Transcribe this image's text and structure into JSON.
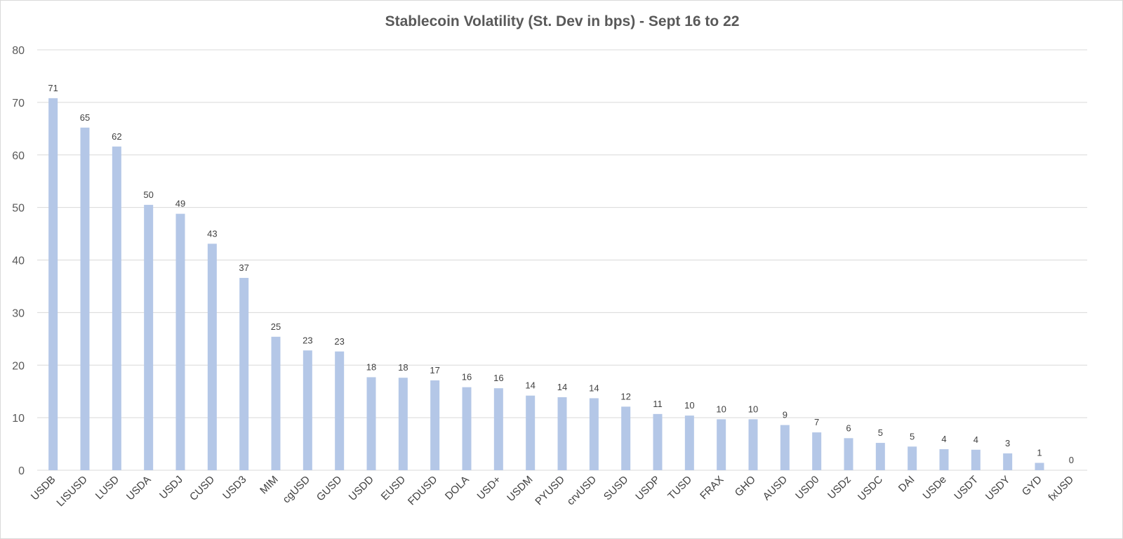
{
  "chart_data": {
    "type": "bar",
    "title": "Stablecoin Volatility (St. Dev in bps) - Sept 16 to 22",
    "xlabel": "",
    "ylabel": "",
    "ylim": [
      0,
      80
    ],
    "yticks": [
      0,
      10,
      20,
      30,
      40,
      50,
      60,
      70,
      80
    ],
    "grid": true,
    "legend": "none",
    "bar_color": "#b4c7e7",
    "categories": [
      "USDB",
      "LISUSD",
      "LUSD",
      "USDA",
      "USDJ",
      "CUSD",
      "USD3",
      "MIM",
      "cgUSD",
      "GUSD",
      "USDD",
      "EUSD",
      "FDUSD",
      "DOLA",
      "USD+",
      "USDM",
      "PYUSD",
      "crvUSD",
      "SUSD",
      "USDP",
      "TUSD",
      "FRAX",
      "GHO",
      "AUSD",
      "USD0",
      "USDz",
      "USDC",
      "DAI",
      "USDe",
      "USDT",
      "USDY",
      "GYD",
      "fxUSD"
    ],
    "values": [
      70.8,
      65.2,
      61.6,
      50.5,
      48.8,
      43.1,
      36.6,
      25.4,
      22.8,
      22.6,
      17.7,
      17.6,
      17.1,
      15.8,
      15.6,
      14.2,
      13.9,
      13.7,
      12.1,
      10.7,
      10.4,
      9.7,
      9.7,
      8.6,
      7.2,
      6.1,
      5.2,
      4.5,
      4.0,
      3.9,
      3.2,
      1.4,
      0.0
    ],
    "data_labels": [
      "71",
      "65",
      "62",
      "50",
      "49",
      "43",
      "37",
      "25",
      "23",
      "23",
      "18",
      "18",
      "17",
      "16",
      "16",
      "14",
      "14",
      "14",
      "12",
      "11",
      "10",
      "10",
      "10",
      "9",
      "7",
      "6",
      "5",
      "5",
      "4",
      "4",
      "3",
      "1",
      "0"
    ]
  }
}
